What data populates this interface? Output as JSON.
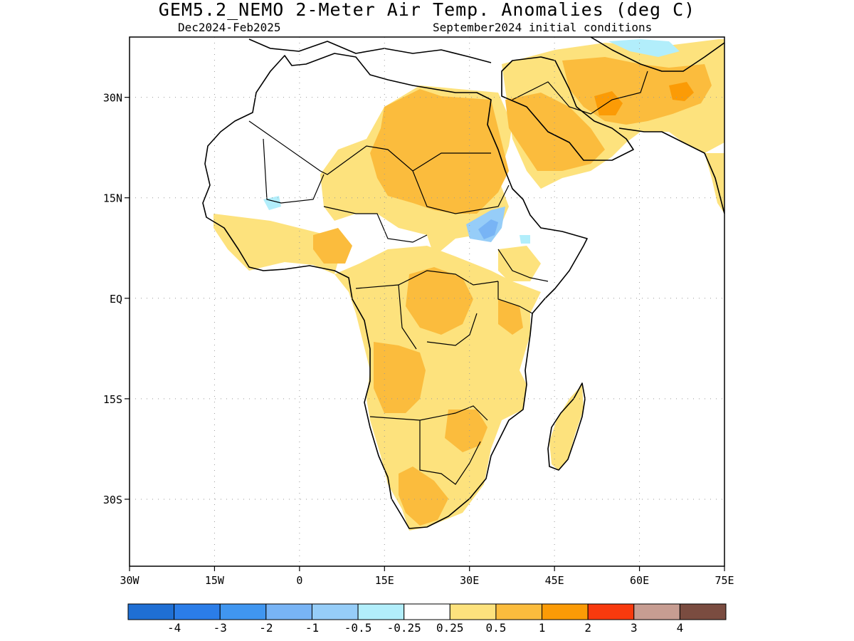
{
  "title": "GEM5.2_NEMO 2-Meter Air Temp. Anomalies (deg C)",
  "subtitle_left": "Dec2024-Feb2025",
  "subtitle_right": "September2024 initial conditions",
  "map": {
    "region": "Africa",
    "lon_range": [
      -30,
      75
    ],
    "lat_range": [
      -40,
      39
    ],
    "lat_ticks": [
      {
        "value": 30,
        "label": "30N"
      },
      {
        "value": 15,
        "label": "15N"
      },
      {
        "value": 0,
        "label": "EQ"
      },
      {
        "value": -15,
        "label": "15S"
      },
      {
        "value": -30,
        "label": "30S"
      }
    ],
    "lon_ticks": [
      {
        "value": -30,
        "label": "30W"
      },
      {
        "value": -15,
        "label": "15W"
      },
      {
        "value": 0,
        "label": "0"
      },
      {
        "value": 15,
        "label": "15E"
      },
      {
        "value": 30,
        "label": "30E"
      },
      {
        "value": 45,
        "label": "45E"
      },
      {
        "value": 60,
        "label": "60E"
      },
      {
        "value": 75,
        "label": "75E"
      }
    ],
    "grid": "dotted"
  },
  "colorbar": {
    "colors": [
      "#1f6fd4",
      "#2b7de8",
      "#4096f0",
      "#78b4f5",
      "#96cdf8",
      "#b2eefb",
      "#ffffff",
      "#fde27d",
      "#fbbc3d",
      "#fb9b06",
      "#f83a0e",
      "#c79d92",
      "#7a4c40"
    ],
    "labels": [
      "-4",
      "-3",
      "-2",
      "-1",
      "-0.5",
      "-0.25",
      "0.25",
      "0.5",
      "1",
      "2",
      "3",
      "4"
    ]
  }
}
